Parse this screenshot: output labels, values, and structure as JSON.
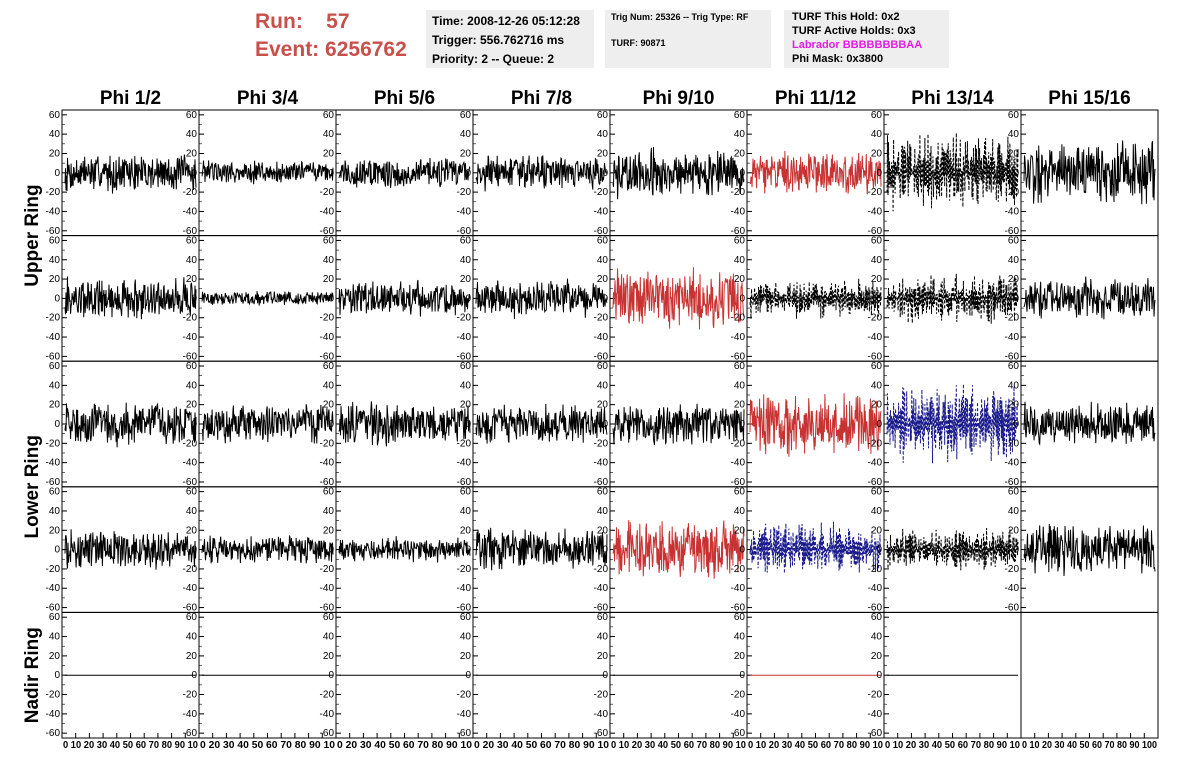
{
  "header": {
    "run_label": "Run:",
    "run_value": "57",
    "event_label": "Event:",
    "event_value": "6256762"
  },
  "info_box_1": {
    "time": "Time: 2008-12-26 05:12:28",
    "trigger": "Trigger: 556.762716 ms",
    "priority": "Priority: 2 -- Queue: 2"
  },
  "info_box_2": {
    "trig": "Trig Num: 25326 -- Trig Type: RF",
    "turf": "TURF: 90871"
  },
  "info_box_3": {
    "this_hold": "TURF This Hold: 0x2",
    "active_holds": "TURF Active Holds: 0x3",
    "labrador": "Labrador BBBBBBBBAA",
    "phi_mask": "Phi Mask: 0x3800"
  },
  "colors": {
    "normal": "#000000",
    "triggered": "#c83232",
    "masked": "#1a1a8c",
    "header_red": "#c8504a",
    "labrador": "#e020e0"
  },
  "chart_data": {
    "type": "line",
    "columns": [
      "Phi 1/2",
      "Phi 3/4",
      "Phi 5/6",
      "Phi 7/8",
      "Phi 9/10",
      "Phi 11/12",
      "Phi 13/14",
      "Phi 15/16"
    ],
    "rows": [
      "Upper Ring",
      "Lower Ring",
      "Nadir Ring"
    ],
    "ylim": [
      -65,
      65
    ],
    "yticks": [
      "60",
      "40",
      "20",
      "0",
      "-20",
      "-40",
      "-60"
    ],
    "xlim": [
      0,
      100
    ],
    "xticks": [
      "0 10 20 30 40 50 60 70 80 90 10",
      "0 20 30 40 50 60 70 80 90 10",
      "0 20 30 40 50 60 70 80 90 10",
      "0 20 30 40 50 60 70 80 90 10",
      "0 10 20 30 40 50 60 70 80 90 10",
      "0 10 20 30 40 50 60 70 80 90 10",
      "0 10 20 30 40 50 60 70 80 90 10",
      "0 10 20 30 40 50 60 70 80 90 100"
    ],
    "panels": [
      {
        "row": 0,
        "col": 0,
        "style": "normal",
        "amplitude": 22
      },
      {
        "row": 0,
        "col": 1,
        "style": "normal",
        "amplitude": 14
      },
      {
        "row": 0,
        "col": 2,
        "style": "normal",
        "amplitude": 18
      },
      {
        "row": 0,
        "col": 3,
        "style": "normal",
        "amplitude": 20
      },
      {
        "row": 0,
        "col": 4,
        "style": "normal",
        "amplitude": 28
      },
      {
        "row": 0,
        "col": 5,
        "style": "triggered",
        "amplitude": 24
      },
      {
        "row": 0,
        "col": 6,
        "style": "dashed",
        "amplitude": 45
      },
      {
        "row": 0,
        "col": 7,
        "style": "normal",
        "amplitude": 35
      },
      {
        "row": 1,
        "col": 0,
        "style": "normal",
        "amplitude": 24
      },
      {
        "row": 1,
        "col": 1,
        "style": "normal",
        "amplitude": 8
      },
      {
        "row": 1,
        "col": 2,
        "style": "normal",
        "amplitude": 20
      },
      {
        "row": 1,
        "col": 3,
        "style": "normal",
        "amplitude": 22
      },
      {
        "row": 1,
        "col": 4,
        "style": "triggered",
        "amplitude": 34
      },
      {
        "row": 1,
        "col": 5,
        "style": "dashed",
        "amplitude": 22
      },
      {
        "row": 1,
        "col": 6,
        "style": "dashed",
        "amplitude": 28
      },
      {
        "row": 1,
        "col": 7,
        "style": "normal",
        "amplitude": 24
      },
      {
        "row": 2,
        "col": 0,
        "style": "normal",
        "amplitude": 25
      },
      {
        "row": 2,
        "col": 1,
        "style": "normal",
        "amplitude": 22
      },
      {
        "row": 2,
        "col": 2,
        "style": "normal",
        "amplitude": 24
      },
      {
        "row": 2,
        "col": 3,
        "style": "normal",
        "amplitude": 22
      },
      {
        "row": 2,
        "col": 4,
        "style": "normal",
        "amplitude": 24
      },
      {
        "row": 2,
        "col": 5,
        "style": "triggered",
        "amplitude": 38
      },
      {
        "row": 2,
        "col": 6,
        "style": "masked",
        "amplitude": 45
      },
      {
        "row": 2,
        "col": 7,
        "style": "normal",
        "amplitude": 24
      },
      {
        "row": 3,
        "col": 0,
        "style": "normal",
        "amplitude": 22
      },
      {
        "row": 3,
        "col": 1,
        "style": "normal",
        "amplitude": 16
      },
      {
        "row": 3,
        "col": 2,
        "style": "normal",
        "amplitude": 14
      },
      {
        "row": 3,
        "col": 3,
        "style": "normal",
        "amplitude": 24
      },
      {
        "row": 3,
        "col": 4,
        "style": "triggered",
        "amplitude": 34
      },
      {
        "row": 3,
        "col": 5,
        "style": "masked",
        "amplitude": 30
      },
      {
        "row": 3,
        "col": 6,
        "style": "dashed",
        "amplitude": 24
      },
      {
        "row": 3,
        "col": 7,
        "style": "normal",
        "amplitude": 28
      },
      {
        "row": 4,
        "col": 0,
        "style": "normal",
        "amplitude": 0
      },
      {
        "row": 4,
        "col": 1,
        "style": "normal",
        "amplitude": 0
      },
      {
        "row": 4,
        "col": 2,
        "style": "normal",
        "amplitude": 0
      },
      {
        "row": 4,
        "col": 3,
        "style": "normal",
        "amplitude": 0
      },
      {
        "row": 4,
        "col": 4,
        "style": "normal",
        "amplitude": 0
      },
      {
        "row": 4,
        "col": 5,
        "style": "triggered",
        "amplitude": 0
      },
      {
        "row": 4,
        "col": 6,
        "style": "normal",
        "amplitude": 0
      },
      {
        "row": 4,
        "col": 7,
        "style": "none",
        "amplitude": 0
      }
    ]
  }
}
